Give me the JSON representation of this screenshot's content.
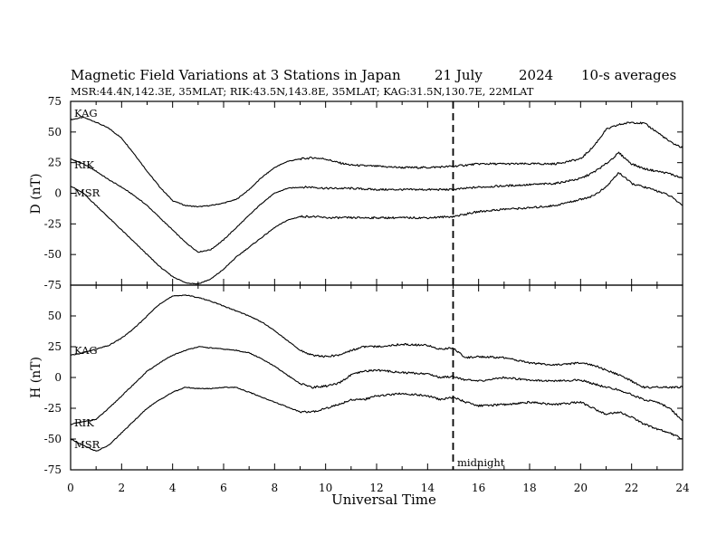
{
  "title": {
    "main": "Magnetic Field Variations at 3 Stations in Japan",
    "date": "21 July",
    "year": "2024",
    "avg": "10-s averages",
    "stations": "MSR:44.4N,142.3E, 35MLAT;  RIK:43.5N,143.8E, 35MLAT;  KAG:31.5N,130.7E, 22MLAT"
  },
  "xaxis": {
    "label": "Universal Time",
    "ticks": [
      "0",
      "2",
      "4",
      "6",
      "8",
      "10",
      "12",
      "14",
      "16",
      "18",
      "20",
      "22",
      "24"
    ]
  },
  "marker": {
    "label": "midnight",
    "x": 15
  },
  "chart_data": [
    {
      "type": "line",
      "ylabel": "D (nT)",
      "xlim": [
        0,
        24
      ],
      "ylim": [
        -75,
        75
      ],
      "yticks": [
        "75",
        "50",
        "25",
        "0",
        "-25",
        "-50",
        "-75"
      ],
      "series": [
        {
          "name": "KAG",
          "x": [
            0,
            0.5,
            1,
            1.5,
            2,
            2.5,
            3,
            3.5,
            4,
            4.5,
            5,
            5.5,
            6,
            6.5,
            7,
            7.5,
            8,
            8.5,
            9,
            9.5,
            10,
            10.5,
            11,
            12,
            13,
            14,
            15,
            16,
            17,
            18,
            19,
            20,
            20.5,
            21,
            21.5,
            22,
            22.5,
            23,
            23.5,
            24
          ],
          "y": [
            60,
            62,
            58,
            53,
            45,
            32,
            18,
            5,
            -6,
            -10,
            -11,
            -10,
            -8,
            -5,
            3,
            13,
            21,
            26,
            28,
            29,
            28,
            25,
            23,
            22,
            21,
            21,
            22,
            24,
            24,
            24,
            24,
            28,
            38,
            52,
            56,
            58,
            57,
            50,
            42,
            37
          ]
        },
        {
          "name": "RIK",
          "x": [
            0,
            0.5,
            1,
            1.5,
            2,
            2.5,
            3,
            3.5,
            4,
            4.5,
            5,
            5.5,
            6,
            6.5,
            7,
            7.5,
            8,
            8.5,
            9,
            9.5,
            10,
            11,
            12,
            13,
            14,
            15,
            16,
            17,
            18,
            19,
            20,
            20.5,
            21,
            21.5,
            22,
            22.5,
            23,
            23.5,
            24
          ],
          "y": [
            28,
            24,
            18,
            11,
            5,
            -2,
            -10,
            -20,
            -30,
            -40,
            -48,
            -46,
            -38,
            -28,
            -18,
            -8,
            0,
            4,
            5,
            5,
            4,
            4,
            3,
            3,
            3,
            3,
            5,
            6,
            7,
            8,
            12,
            17,
            24,
            33,
            24,
            20,
            18,
            16,
            12
          ]
        },
        {
          "name": "MSR",
          "x": [
            0,
            0.5,
            1,
            1.5,
            2,
            2.5,
            3,
            3.5,
            4,
            4.5,
            5,
            5.5,
            6,
            6.5,
            7,
            7.5,
            8,
            8.5,
            9,
            9.5,
            10,
            11,
            12,
            13,
            14,
            15,
            16,
            17,
            18,
            19,
            20,
            20.5,
            21,
            21.5,
            22,
            22.5,
            23,
            23.5,
            24
          ],
          "y": [
            6,
            0,
            -10,
            -20,
            -30,
            -40,
            -50,
            -60,
            -68,
            -73,
            -74,
            -70,
            -62,
            -52,
            -44,
            -36,
            -28,
            -22,
            -19,
            -19,
            -20,
            -20,
            -20,
            -20,
            -20,
            -19,
            -15,
            -13,
            -12,
            -10,
            -5,
            -2,
            5,
            17,
            8,
            5,
            2,
            -2,
            -10
          ]
        }
      ]
    },
    {
      "type": "line",
      "ylabel": "H (nT)",
      "xlim": [
        0,
        24
      ],
      "ylim": [
        -75,
        75
      ],
      "yticks": [
        "75",
        "50",
        "25",
        "0",
        "-25",
        "-50",
        "-75"
      ],
      "series": [
        {
          "name": "KAG",
          "x": [
            0,
            0.5,
            1,
            1.5,
            2,
            2.5,
            3,
            3.5,
            4,
            4.5,
            5,
            5.5,
            6,
            6.5,
            7,
            7.5,
            8,
            8.5,
            9,
            9.5,
            10,
            10.5,
            11,
            11.5,
            12,
            13,
            14,
            14.5,
            15,
            15.5,
            16,
            17,
            18,
            19,
            20,
            20.5,
            21,
            21.5,
            22,
            22.5,
            23,
            23.5,
            24
          ],
          "y": [
            18,
            20,
            23,
            26,
            32,
            40,
            50,
            60,
            66,
            67,
            65,
            62,
            58,
            54,
            50,
            45,
            38,
            30,
            22,
            18,
            17,
            18,
            22,
            25,
            25,
            27,
            26,
            23,
            24,
            16,
            17,
            16,
            12,
            10,
            12,
            10,
            6,
            2,
            -3,
            -8,
            -8,
            -8,
            -8
          ]
        },
        {
          "name": "RIK",
          "x": [
            0,
            0.5,
            1,
            1.5,
            2,
            2.5,
            3,
            3.5,
            4,
            4.5,
            5,
            5.5,
            6,
            6.5,
            7,
            7.5,
            8,
            8.5,
            9,
            9.5,
            10,
            10.5,
            11,
            11.5,
            12,
            13,
            14,
            14.5,
            15,
            15.5,
            16,
            17,
            18,
            19,
            20,
            20.5,
            21,
            21.5,
            22,
            22.5,
            23,
            23.5,
            24
          ],
          "y": [
            -38,
            -36,
            -34,
            -25,
            -15,
            -5,
            5,
            12,
            18,
            22,
            25,
            24,
            23,
            22,
            20,
            15,
            9,
            2,
            -5,
            -8,
            -7,
            -5,
            2,
            5,
            6,
            4,
            3,
            0,
            1,
            -2,
            -3,
            0,
            -2,
            -3,
            -2,
            -5,
            -8,
            -10,
            -14,
            -18,
            -20,
            -25,
            -35
          ]
        },
        {
          "name": "MSR",
          "x": [
            0,
            0.5,
            1,
            1.5,
            2,
            2.5,
            3,
            3.5,
            4,
            4.5,
            5,
            5.5,
            6,
            6.5,
            7,
            7.5,
            8,
            8.5,
            9,
            9.5,
            10,
            10.5,
            11,
            11.5,
            12,
            13,
            14,
            14.5,
            15,
            15.5,
            16,
            17,
            18,
            19,
            20,
            20.5,
            21,
            21.5,
            22,
            22.5,
            23,
            23.5,
            24
          ],
          "y": [
            -50,
            -55,
            -60,
            -55,
            -45,
            -35,
            -25,
            -18,
            -12,
            -8,
            -9,
            -9,
            -8,
            -8,
            -12,
            -16,
            -20,
            -24,
            -28,
            -28,
            -25,
            -22,
            -18,
            -18,
            -15,
            -13,
            -15,
            -18,
            -16,
            -20,
            -23,
            -22,
            -20,
            -22,
            -20,
            -25,
            -30,
            -28,
            -32,
            -38,
            -42,
            -45,
            -50
          ]
        }
      ]
    }
  ]
}
